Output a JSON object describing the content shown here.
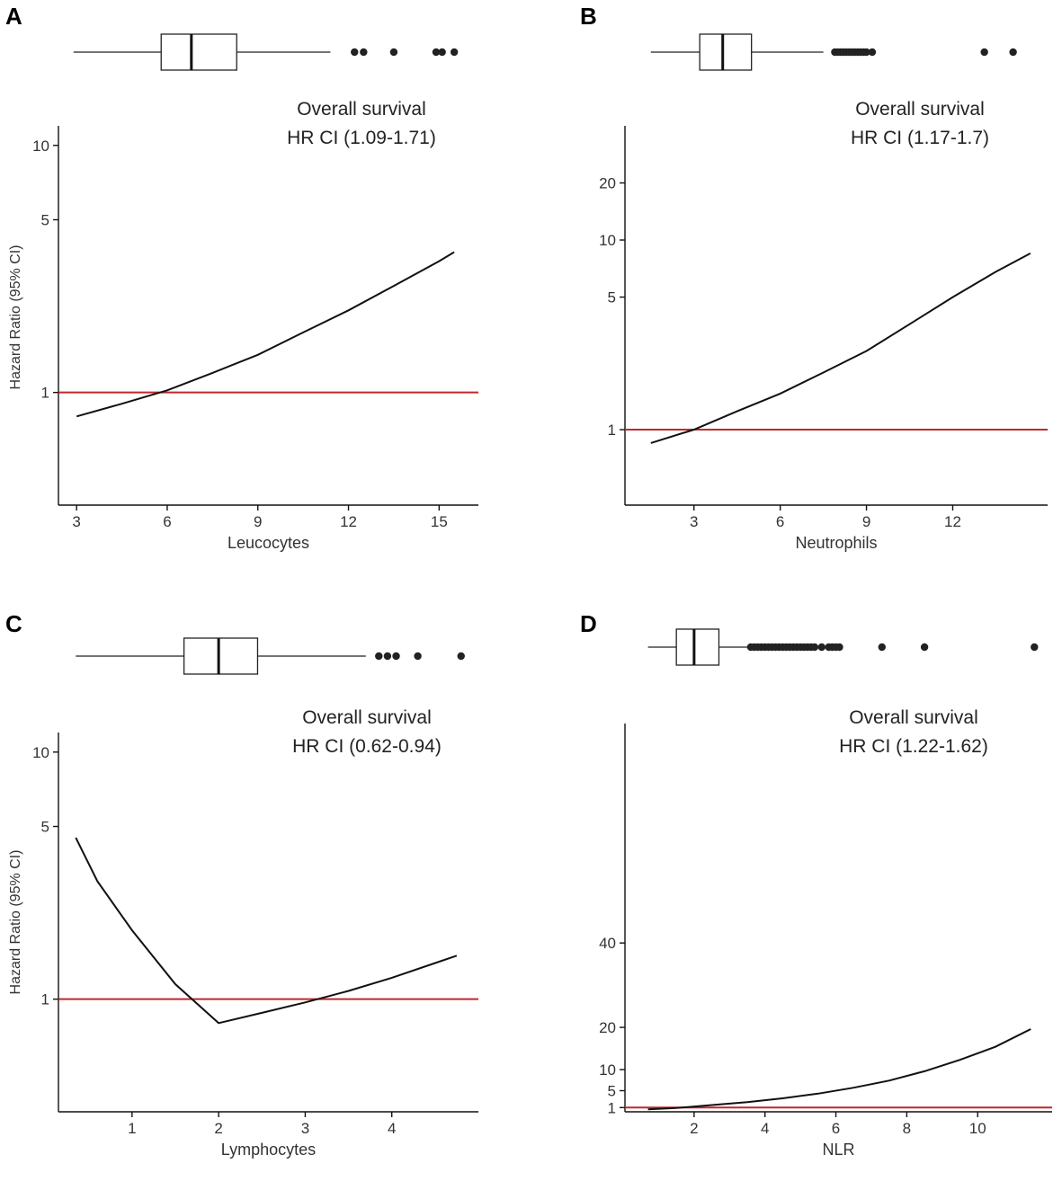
{
  "chart_data": [
    {
      "panel": "A",
      "type": "line",
      "annotation_title": "Overall survival",
      "annotation_ci": "HR CI (1.09-1.71)",
      "xlabel": "Leucocytes",
      "ylabel": "Hazard Ratio (95% CI)",
      "xlim": [
        2.4,
        16.3
      ],
      "ylim": [
        0.35,
        12
      ],
      "yscale": "log",
      "xticks": [
        3,
        6,
        9,
        12,
        15
      ],
      "yticks": [
        1,
        5,
        10
      ],
      "reference_line": 1,
      "curve": {
        "x": [
          3,
          4.5,
          6,
          7.5,
          9,
          10.5,
          12,
          13.5,
          15,
          15.5
        ],
        "y": [
          0.8,
          0.9,
          1.02,
          1.2,
          1.42,
          1.75,
          2.15,
          2.7,
          3.4,
          3.7
        ]
      },
      "boxplot": {
        "whisker_low": 2.9,
        "q1": 5.8,
        "median": 6.8,
        "q3": 8.3,
        "whisker_high": 11.4,
        "outliers": [
          12.2,
          12.5,
          13.5,
          14.9,
          15.1,
          15.5
        ]
      }
    },
    {
      "panel": "B",
      "type": "line",
      "annotation_title": "Overall survival",
      "annotation_ci": "HR CI (1.17-1.7)",
      "xlabel": "Neutrophils",
      "ylabel": "",
      "xlim": [
        0.6,
        15.3
      ],
      "ylim": [
        0.4,
        40
      ],
      "yscale": "log",
      "xticks": [
        3,
        6,
        9,
        12
      ],
      "yticks": [
        1,
        5,
        10,
        20
      ],
      "reference_line": 1,
      "curve": {
        "x": [
          1.5,
          3,
          4.5,
          6,
          7.5,
          9,
          10.5,
          12,
          13.5,
          14.7
        ],
        "y": [
          0.85,
          1.0,
          1.25,
          1.55,
          2.0,
          2.6,
          3.6,
          5.0,
          6.8,
          8.5
        ]
      },
      "boxplot": {
        "whisker_low": 1.5,
        "q1": 3.2,
        "median": 4.0,
        "q3": 5.0,
        "whisker_high": 7.5,
        "outliers": [
          7.9,
          8.0,
          8.1,
          8.2,
          8.3,
          8.4,
          8.5,
          8.6,
          8.7,
          8.8,
          8.9,
          9.0,
          9.2,
          13.1,
          14.1
        ]
      }
    },
    {
      "panel": "C",
      "type": "line",
      "annotation_title": "Overall survival",
      "annotation_ci": "HR CI (0.62-0.94)",
      "xlabel": "Lymphocytes",
      "ylabel": "Hazard Ratio (95% CI)",
      "xlim": [
        0.15,
        5.0
      ],
      "ylim": [
        0.35,
        12
      ],
      "yscale": "log",
      "xticks": [
        1,
        2,
        3,
        4
      ],
      "yticks": [
        1,
        5,
        10
      ],
      "reference_line": 1,
      "curve": {
        "x": [
          0.35,
          0.6,
          1.0,
          1.5,
          2.0,
          2.5,
          3.0,
          3.5,
          4.0,
          4.5,
          4.75
        ],
        "y": [
          4.5,
          3.0,
          1.9,
          1.15,
          0.8,
          0.88,
          0.97,
          1.08,
          1.22,
          1.4,
          1.5
        ]
      },
      "boxplot": {
        "whisker_low": 0.35,
        "q1": 1.6,
        "median": 2.0,
        "q3": 2.45,
        "whisker_high": 3.7,
        "outliers": [
          3.85,
          3.95,
          4.05,
          4.3,
          4.8
        ]
      }
    },
    {
      "panel": "D",
      "type": "line",
      "annotation_title": "Overall survival",
      "annotation_ci": "HR CI (1.22-1.62)",
      "xlabel": "NLR",
      "ylabel": "",
      "xlim": [
        0.05,
        12.1
      ],
      "ylim": [
        0,
        92
      ],
      "yscale": "linear",
      "xticks": [
        2,
        4,
        6,
        8,
        10
      ],
      "yticks": [
        1,
        5,
        10,
        20,
        40
      ],
      "reference_line": 1,
      "curve": {
        "x": [
          0.7,
          1.5,
          2.5,
          3.5,
          4.5,
          5.5,
          6.5,
          7.5,
          8.5,
          9.5,
          10.5,
          11.5
        ],
        "y": [
          0.6,
          0.9,
          1.6,
          2.3,
          3.2,
          4.3,
          5.7,
          7.4,
          9.6,
          12.3,
          15.4,
          19.6
        ]
      },
      "boxplot": {
        "whisker_low": 0.7,
        "q1": 1.5,
        "median": 2.0,
        "q3": 2.7,
        "whisker_high": 3.5,
        "outliers": [
          3.6,
          3.7,
          3.8,
          3.9,
          4.0,
          4.1,
          4.2,
          4.3,
          4.4,
          4.5,
          4.6,
          4.7,
          4.8,
          4.9,
          5.0,
          5.1,
          5.2,
          5.3,
          5.4,
          5.6,
          5.8,
          5.9,
          6.0,
          6.1,
          7.3,
          8.5,
          11.6
        ]
      }
    }
  ]
}
